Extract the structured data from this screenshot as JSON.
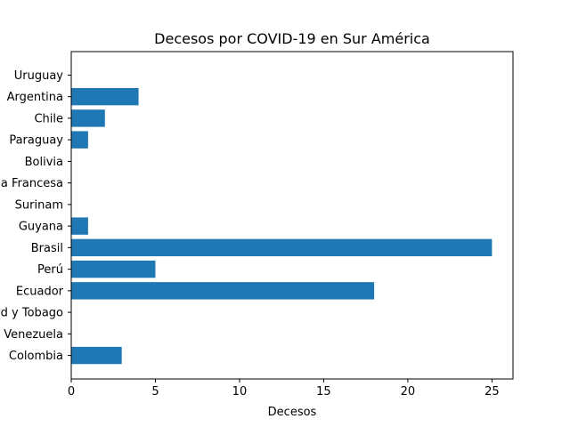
{
  "chart_data": {
    "type": "bar",
    "orientation": "horizontal",
    "title": "Decesos por COVID-19 en Sur América",
    "xlabel": "Decesos",
    "ylabel": "",
    "xlim": [
      0,
      26.25
    ],
    "xticks": [
      0,
      5,
      10,
      15,
      20,
      25
    ],
    "grid": false,
    "categories": [
      "Colombia",
      "Venezuela",
      "Trinidad y Tobago",
      "Ecuador",
      "Perú",
      "Brasil",
      "Guyana",
      "Surinam",
      "Guayana Francesa",
      "Bolivia",
      "Paraguay",
      "Chile",
      "Argentina",
      "Uruguay"
    ],
    "values": [
      3,
      0,
      0,
      18,
      5,
      25,
      1,
      0,
      0,
      0,
      1,
      2,
      4,
      0
    ],
    "bar_color": "#1f77b4"
  }
}
